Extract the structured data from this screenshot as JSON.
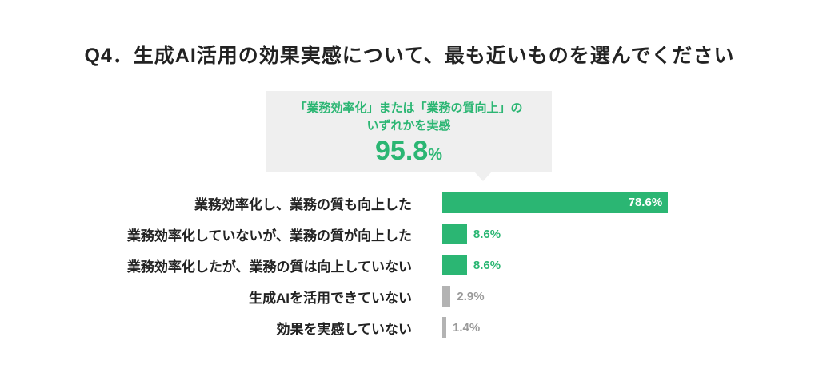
{
  "title": "Q4．生成AI活用の効果実感について、最も近いものを選んでください",
  "callout": {
    "line1": "「業務効率化」または「業務の質向上」の",
    "line2": "いずれかを実感",
    "value": "95.8",
    "unit": "%"
  },
  "colors": {
    "green": "#2bb673",
    "gray_bar": "#b3b3b3",
    "gray_text": "#9a9a9a",
    "callout_bg": "#efefef",
    "text": "#222222"
  },
  "chart_data": {
    "type": "bar",
    "orientation": "horizontal",
    "title": "Q4．生成AI活用の効果実感について、最も近いものを選んでください",
    "categories": [
      "業務効率化し、業務の質も向上した",
      "業務効率化していないが、業務の質が向上した",
      "業務効率化したが、業務の質は向上していない",
      "生成AIを活用できていない",
      "効果を実感していない"
    ],
    "values": [
      78.6,
      8.6,
      8.6,
      2.9,
      1.4
    ],
    "value_labels": [
      "78.6%",
      "8.6%",
      "8.6%",
      "2.9%",
      "1.4%"
    ],
    "bar_colors": [
      "green",
      "green",
      "green",
      "gray",
      "gray"
    ],
    "xlim": [
      0,
      80
    ],
    "unit": "percent",
    "legend": "none",
    "grid": false,
    "annotation": {
      "text": "「業務効率化」または「業務の質向上」のいずれかを実感",
      "value": 95.8
    }
  }
}
